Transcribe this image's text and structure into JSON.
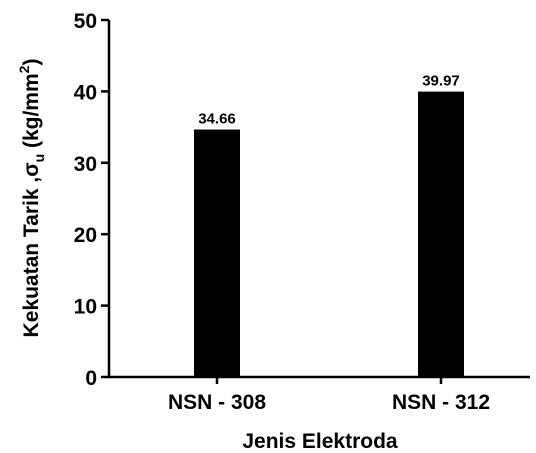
{
  "chart_data": {
    "type": "bar",
    "categories": [
      "NSN - 308",
      "NSN - 312"
    ],
    "values": [
      34.66,
      39.97
    ],
    "data_labels": [
      "34.66",
      "39.97"
    ],
    "xlabel": "Jenis Elektroda",
    "ylabel": {
      "prefix": "Kekuatan Tarik ,",
      "symbol": "σ",
      "subscript": "u",
      "unit_open": " (kg/mm",
      "superscript": "2",
      "unit_close": ")"
    },
    "ylim": [
      0,
      50
    ],
    "yticks": [
      0,
      10,
      20,
      30,
      40,
      50
    ],
    "bar_color": "#000000",
    "grid": false,
    "legend": "none"
  }
}
